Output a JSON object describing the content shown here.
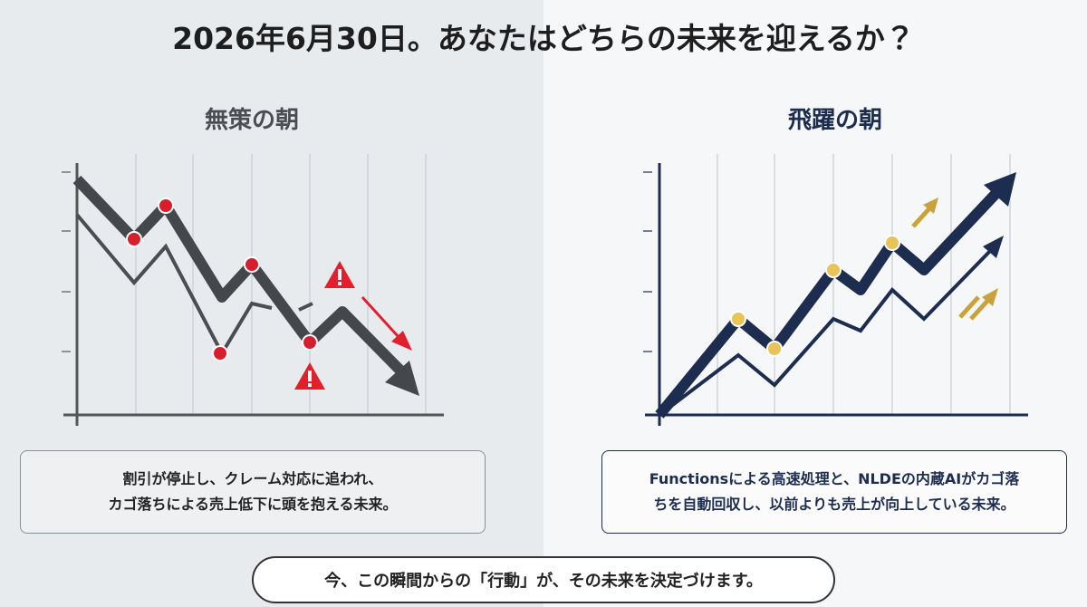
{
  "header": {
    "title": "2026年6月30日。あなたはどちらの未来を迎えるか？"
  },
  "left": {
    "heading": "無策の朝",
    "caption": [
      "割引が停止し、クレーム対応に追われ、",
      "カゴ落ちによる売上低下に頭を抱える未来。"
    ]
  },
  "right": {
    "heading": "飛躍の朝",
    "caption": [
      "Functionsによる高速処理と、NLDEの内蔵AIがカゴ落",
      "ちを自動回収し、以前よりも売上が向上している未来。"
    ]
  },
  "footer": {
    "message": "今、この瞬間からの「行動」が、その未来を決定づけます。"
  }
}
